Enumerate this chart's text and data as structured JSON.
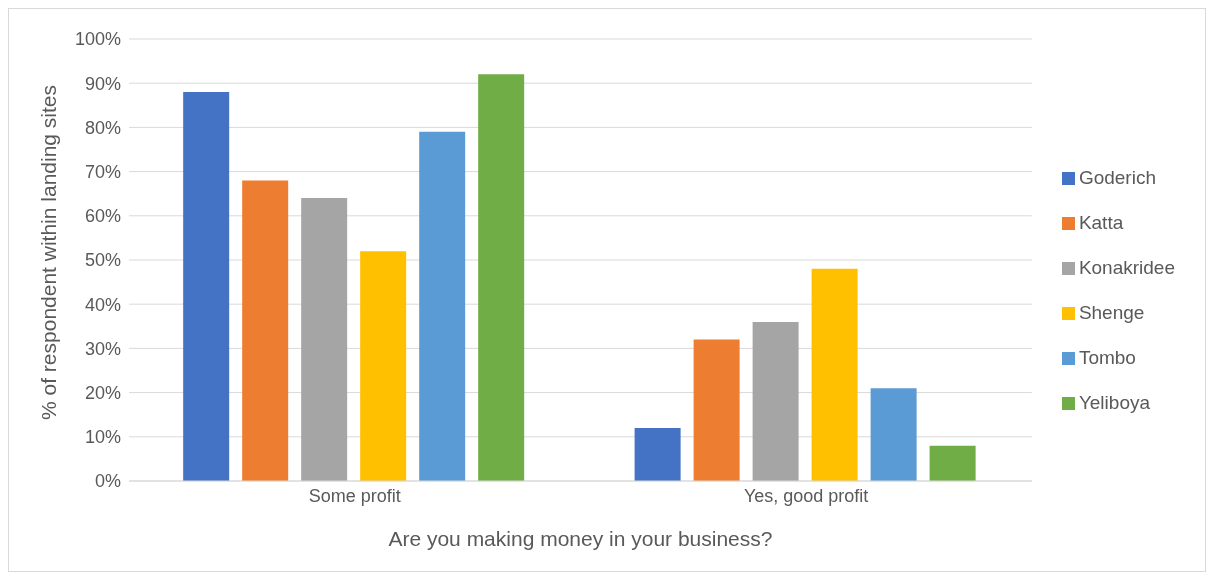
{
  "chart_data": {
    "type": "bar",
    "xlabel": "Are you making money in your business?",
    "ylabel": "% of respondent within landing sites",
    "categories": [
      "Some profit",
      "Yes, good profit"
    ],
    "series": [
      {
        "name": "Goderich",
        "color": "#4472c4",
        "values": [
          88,
          12
        ]
      },
      {
        "name": "Katta",
        "color": "#ed7d31",
        "values": [
          68,
          32
        ]
      },
      {
        "name": "Konakridee",
        "color": "#a5a5a5",
        "values": [
          64,
          36
        ]
      },
      {
        "name": "Shenge",
        "color": "#ffc000",
        "values": [
          52,
          48
        ]
      },
      {
        "name": "Tombo",
        "color": "#5b9bd5",
        "values": [
          79,
          21
        ]
      },
      {
        "name": "Yeliboya",
        "color": "#70ad47",
        "values": [
          92,
          8
        ]
      }
    ],
    "ylim": [
      0,
      100
    ],
    "yticks": [
      {
        "value": 0,
        "label": "0%"
      },
      {
        "value": 10,
        "label": "10%"
      },
      {
        "value": 20,
        "label": "20%"
      },
      {
        "value": 30,
        "label": "30%"
      },
      {
        "value": 40,
        "label": "40%"
      },
      {
        "value": 50,
        "label": "50%"
      },
      {
        "value": 60,
        "label": "60%"
      },
      {
        "value": 70,
        "label": "70%"
      },
      {
        "value": 80,
        "label": "80%"
      },
      {
        "value": 90,
        "label": "90%"
      },
      {
        "value": 100,
        "label": "100%"
      }
    ],
    "grid": "y",
    "legend": "right"
  }
}
